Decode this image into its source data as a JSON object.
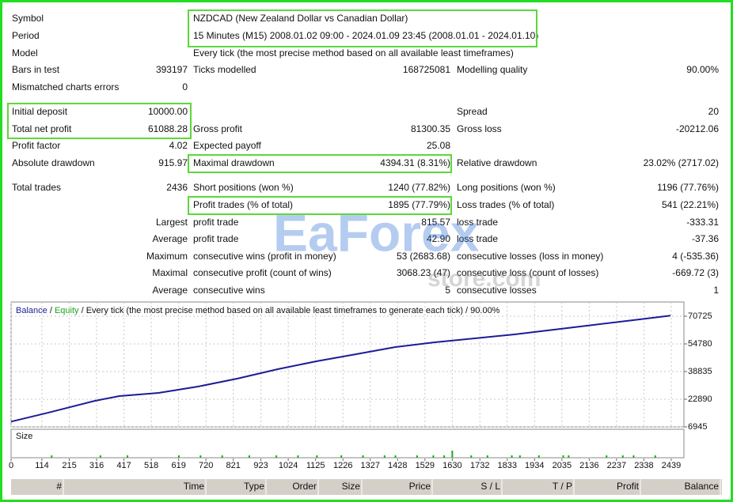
{
  "report": {
    "summary": [
      {
        "label": "Symbol",
        "text": "NZDCAD (New Zealand Dollar vs Canadian Dollar)"
      },
      {
        "label": "Period",
        "text": "15 Minutes (M15) 2008.01.02 09:00 - 2024.01.09 23:45 (2008.01.01 - 2024.01.10)"
      },
      {
        "label": "Model",
        "text": "Every tick (the most precise method based on all available least timeframes)"
      }
    ],
    "stats": [
      [
        {
          "label": "Bars in test",
          "value": "393197"
        },
        {
          "label": "Ticks modelled",
          "value": "168725081"
        },
        {
          "label": "Modelling quality",
          "value": "90.00%"
        }
      ],
      [
        {
          "label": "Mismatched charts errors",
          "value": "0"
        },
        null,
        null
      ],
      [
        {
          "label": "Initial deposit",
          "value": "10000.00"
        },
        null,
        {
          "label": "Spread",
          "value": "20"
        }
      ],
      [
        {
          "label": "Total net profit",
          "value": "61088.28"
        },
        {
          "label": "Gross profit",
          "value": "81300.35"
        },
        {
          "label": "Gross loss",
          "value": "-20212.06"
        }
      ],
      [
        {
          "label": "Profit factor",
          "value": "4.02"
        },
        {
          "label": "Expected payoff",
          "value": "25.08"
        },
        null
      ],
      [
        {
          "label": "Absolute drawdown",
          "value": "915.97"
        },
        {
          "label": "Maximal drawdown",
          "value": "4394.31 (8.31%)"
        },
        {
          "label": "Relative drawdown",
          "value": "23.02% (2717.02)"
        }
      ],
      [
        {
          "label": "Total trades",
          "value": "2436"
        },
        {
          "label": "Short positions (won %)",
          "value": "1240 (77.82%)"
        },
        {
          "label": "Long positions (won %)",
          "value": "1196 (77.76%)"
        }
      ],
      [
        null,
        {
          "label": "Profit trades (% of total)",
          "value": "1895 (77.79%)"
        },
        {
          "label": "Loss trades (% of total)",
          "value": "541 (22.21%)"
        }
      ],
      [
        {
          "label": "Largest"
        },
        {
          "label": "profit trade",
          "value": "815.57"
        },
        {
          "label": "loss trade",
          "value": "-333.31"
        }
      ],
      [
        {
          "label": "Average"
        },
        {
          "label": "profit trade",
          "value": "42.90"
        },
        {
          "label": "loss trade",
          "value": "-37.36"
        }
      ],
      [
        {
          "label": "Maximum"
        },
        {
          "label": "consecutive wins (profit in money)",
          "value": "53 (2683.68)"
        },
        {
          "label": "consecutive losses (loss in money)",
          "value": "4 (-535.36)"
        }
      ],
      [
        {
          "label": "Maximal"
        },
        {
          "label": "consecutive profit (count of wins)",
          "value": "3068.23 (47)"
        },
        {
          "label": "consecutive loss (count of losses)",
          "value": "-669.72 (3)"
        }
      ],
      [
        {
          "label": "Average"
        },
        {
          "label": "consecutive wins",
          "value": "5"
        },
        {
          "label": "consecutive losses",
          "value": "1"
        }
      ]
    ]
  },
  "watermark": [
    "EaForex",
    "store.com"
  ],
  "chart_data": {
    "type": "line",
    "separator": "/",
    "equity_label": {
      "text": "Equity",
      "color": "#1fa51f"
    },
    "subtitle": "/ Every tick (the most precise method based on all available least timeframes to generate each tick) / 90.00%",
    "x": [
      0,
      135,
      310,
      400,
      545,
      690,
      835,
      985,
      1128,
      1275,
      1420,
      1565,
      1713,
      1860,
      2006,
      2152,
      2298,
      2436
    ],
    "series": [
      {
        "name": "Balance",
        "color": "#1c1c96",
        "values": [
          10000,
          15057,
          21980,
          24713,
          26536,
          30180,
          34737,
          40204,
          44760,
          48860,
          52960,
          55694,
          57972,
          60250,
          62979,
          65717,
          68450,
          71088
        ]
      }
    ],
    "xlim": [
      0,
      2480
    ],
    "xticks": [
      0,
      114,
      215,
      316,
      417,
      518,
      619,
      720,
      821,
      923,
      1024,
      1125,
      1226,
      1327,
      1428,
      1529,
      1630,
      1732,
      1833,
      1934,
      2035,
      2136,
      2237,
      2338,
      2439
    ],
    "ylim": [
      6945,
      78925
    ],
    "yticks": [
      6945,
      22890,
      38835,
      54780,
      70725
    ],
    "grid": true,
    "size_panel": {
      "title": "Size",
      "color": "#14b014",
      "ylim": [
        0,
        12
      ],
      "x": [
        150,
        330,
        430,
        620,
        700,
        780,
        880,
        980,
        1060,
        1130,
        1220,
        1300,
        1380,
        1420,
        1500,
        1560,
        1600,
        1630,
        1700,
        1760,
        1850,
        1880,
        1950,
        2040,
        2060,
        2200,
        2260,
        2300,
        2380
      ],
      "values": [
        1,
        1,
        1,
        1,
        1,
        1,
        1,
        1,
        1,
        1,
        1,
        1,
        1,
        1,
        1,
        1,
        1,
        3,
        1,
        1,
        1,
        1,
        1,
        1,
        1,
        1,
        1,
        1,
        1
      ]
    }
  },
  "trade_table": {
    "columns": [
      "#",
      "Time",
      "Type",
      "Order",
      "Size",
      "Price",
      "S / L",
      "T / P",
      "Profit",
      "Balance"
    ]
  }
}
